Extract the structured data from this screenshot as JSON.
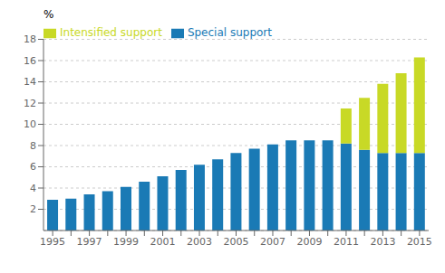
{
  "chart_data": {
    "type": "bar",
    "stacked": true,
    "ylabel": "%",
    "categories": [
      "1995",
      null,
      "1997",
      null,
      "1999",
      null,
      "2001",
      null,
      "2003",
      null,
      "2005",
      null,
      "2007",
      null,
      "2009",
      null,
      "2011",
      null,
      "2013",
      null,
      "2015"
    ],
    "series": [
      {
        "name": "Special support",
        "color": "#1a7ab5",
        "values": [
          2.9,
          3.0,
          3.4,
          3.7,
          4.1,
          4.6,
          5.1,
          5.7,
          6.2,
          6.7,
          7.3,
          7.7,
          8.1,
          8.5,
          8.5,
          8.5,
          8.2,
          7.6,
          7.3,
          7.3,
          7.3
        ]
      },
      {
        "name": "Intensified support",
        "color": "#c8d926",
        "values": [
          0,
          0,
          0,
          0,
          0,
          0,
          0,
          0,
          0,
          0,
          0,
          0,
          0,
          0,
          0,
          0,
          3.3,
          4.9,
          6.5,
          7.5,
          9.0
        ]
      }
    ],
    "ylim": [
      0,
      18
    ],
    "yticks": [
      2,
      4,
      6,
      8,
      10,
      12,
      14,
      16,
      18
    ],
    "grid": true,
    "legend": "upper left"
  }
}
